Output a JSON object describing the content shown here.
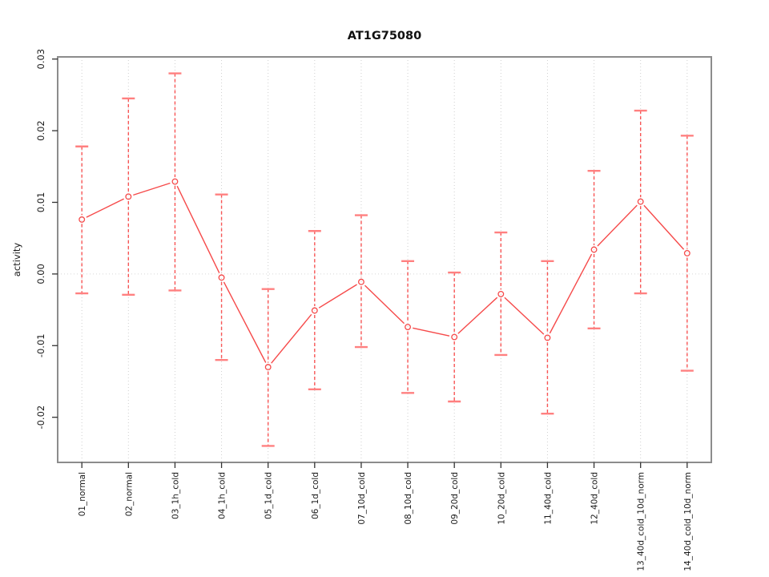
{
  "chart_data": {
    "type": "line",
    "title": "AT1G75080",
    "ylabel": "activity",
    "xlabel": "",
    "legend": "none",
    "categories": [
      "01_normal",
      "02_normal",
      "03_1h_cold",
      "04_1h_cold",
      "05_1d_cold",
      "06_1d_cold",
      "07_10d_cold",
      "08_10d_cold",
      "09_20d_cold",
      "10_20d_cold",
      "11_40d_cold",
      "12_40d_cold",
      "13_40d_cold_10d_norm",
      "14_40d_cold_10d_norm"
    ],
    "series": [
      {
        "name": "activity",
        "values": [
          0.0076,
          0.0108,
          0.0129,
          -0.0005,
          -0.013,
          -0.0051,
          -0.0011,
          -0.0074,
          -0.0088,
          -0.0028,
          -0.0089,
          0.0034,
          0.0101,
          0.0029
        ],
        "error_high": [
          0.0178,
          0.0245,
          0.028,
          0.0111,
          -0.0021,
          0.006,
          0.0082,
          0.0018,
          0.0002,
          0.0058,
          0.0018,
          0.0144,
          0.0228,
          0.0193
        ],
        "error_low": [
          -0.0027,
          -0.0029,
          -0.0023,
          -0.012,
          -0.024,
          -0.0161,
          -0.0102,
          -0.0166,
          -0.0178,
          -0.0113,
          -0.0195,
          -0.0076,
          -0.0027,
          -0.0135
        ]
      }
    ],
    "ylim": [
      -0.0263,
      0.0303
    ],
    "yticks": {
      "values": [
        0.03,
        0.02,
        0.01,
        0,
        -0.01,
        -0.02
      ],
      "labels": [
        "0.03",
        "0.02",
        "0.01",
        "0.00",
        "-0.01",
        "-0.02"
      ]
    },
    "grid": {
      "vertical_per_category": true,
      "horizontal_zero_line": true,
      "style": "dotted"
    },
    "marker": "open-circle",
    "error_bar_style": "dashed-with-caps",
    "colors": {
      "line": "#f64a4a",
      "marker": "#f64a4a",
      "error_bar": "#f85555",
      "error_cap": "#ff8080",
      "grid": "#cfcfcf",
      "zero_line": "#d8d8d8",
      "box": "#8c8c8c",
      "tick": "#333333",
      "text": "#1a1a1a",
      "title": "#111111",
      "background": "#ffffff"
    }
  }
}
